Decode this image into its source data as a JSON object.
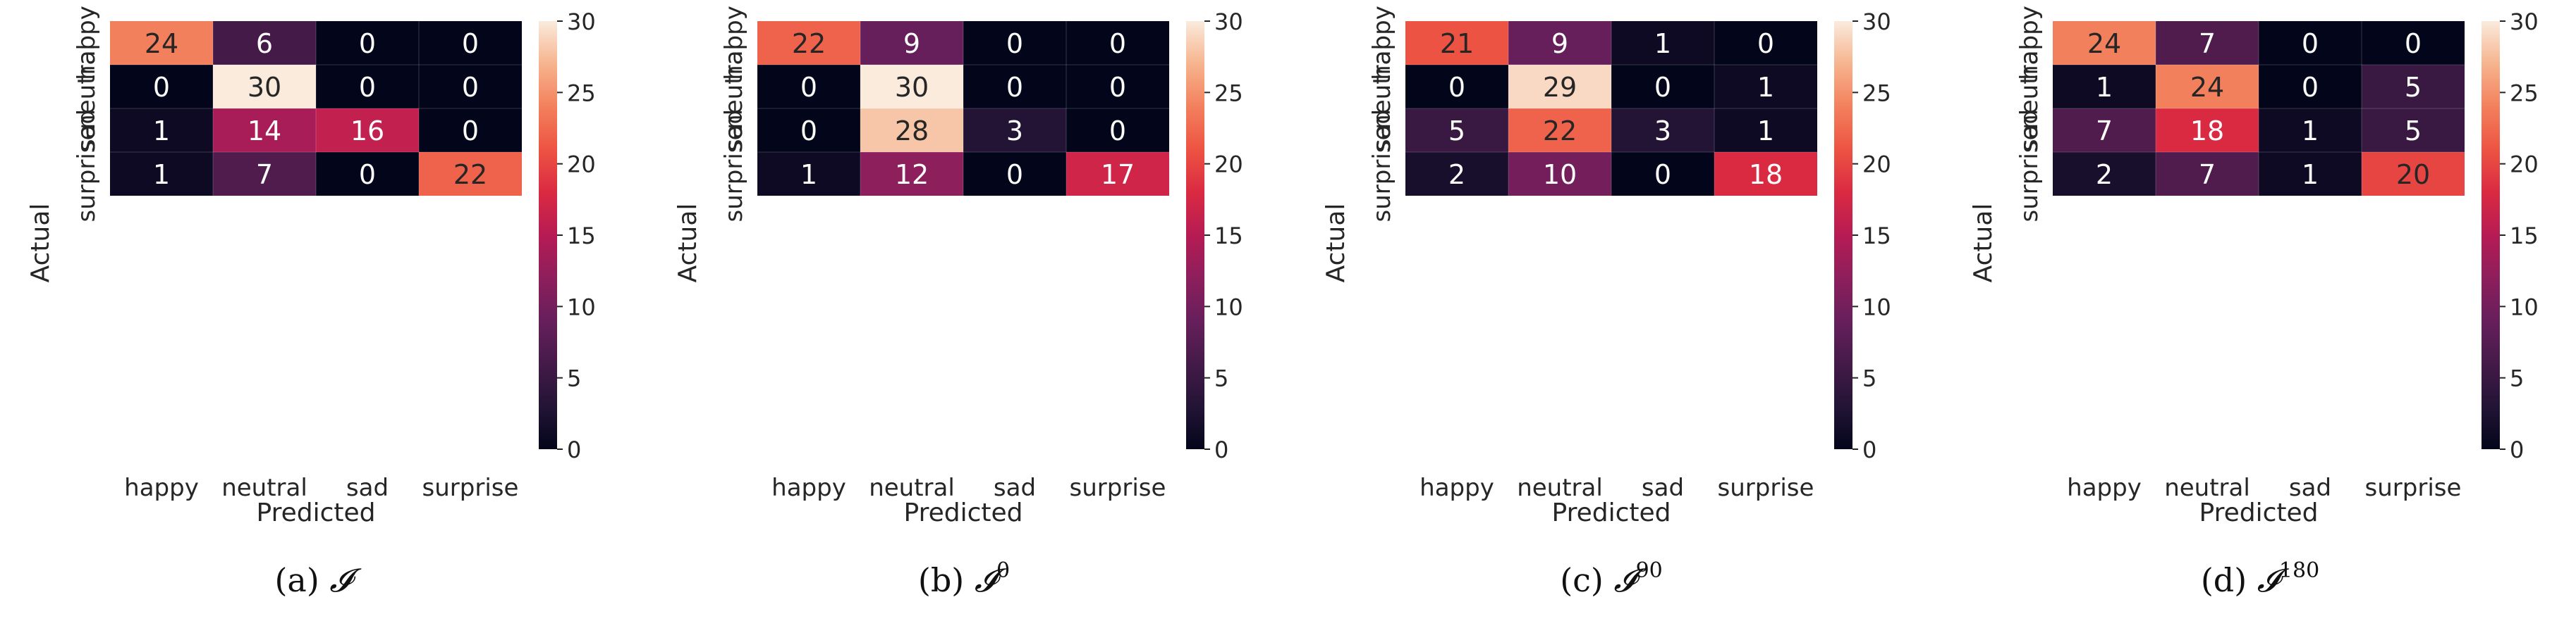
{
  "figure": {
    "panels": [
      {
        "letter": "(a)",
        "symbol": "𝓘",
        "superscript": ""
      },
      {
        "letter": "(b)",
        "symbol": "𝓘",
        "superscript": "0"
      },
      {
        "letter": "(c)",
        "symbol": "𝓘",
        "superscript": "90"
      },
      {
        "letter": "(d)",
        "symbol": "𝓘",
        "superscript": "180"
      }
    ]
  },
  "chart_data": [
    {
      "type": "heatmap",
      "title": "",
      "xlabel": "Predicted",
      "ylabel": "Actual",
      "x_categories": [
        "happy",
        "neutral",
        "sad",
        "surprise"
      ],
      "y_categories": [
        "happy",
        "neutral",
        "sad",
        "surprise"
      ],
      "values": [
        [
          24,
          6,
          0,
          0
        ],
        [
          0,
          30,
          0,
          0
        ],
        [
          1,
          14,
          16,
          0
        ],
        [
          1,
          7,
          0,
          22
        ]
      ],
      "colorbar": {
        "range": [
          0,
          30
        ],
        "ticks": [
          0,
          5,
          10,
          15,
          20,
          25,
          30
        ],
        "colormap": "rocket"
      }
    },
    {
      "type": "heatmap",
      "title": "",
      "xlabel": "Predicted",
      "ylabel": "Actual",
      "x_categories": [
        "happy",
        "neutral",
        "sad",
        "surprise"
      ],
      "y_categories": [
        "happy",
        "neutral",
        "sad",
        "surprise"
      ],
      "values": [
        [
          22,
          9,
          0,
          0
        ],
        [
          0,
          30,
          0,
          0
        ],
        [
          0,
          28,
          3,
          0
        ],
        [
          1,
          12,
          0,
          17
        ]
      ],
      "colorbar": {
        "range": [
          0,
          30
        ],
        "ticks": [
          0,
          5,
          10,
          15,
          20,
          25,
          30
        ],
        "colormap": "rocket"
      }
    },
    {
      "type": "heatmap",
      "title": "",
      "xlabel": "Predicted",
      "ylabel": "Actual",
      "x_categories": [
        "happy",
        "neutral",
        "sad",
        "surprise"
      ],
      "y_categories": [
        "happy",
        "neutral",
        "sad",
        "surprise"
      ],
      "values": [
        [
          21,
          9,
          1,
          0
        ],
        [
          0,
          29,
          0,
          1
        ],
        [
          5,
          22,
          3,
          1
        ],
        [
          2,
          10,
          0,
          18
        ]
      ],
      "colorbar": {
        "range": [
          0,
          30
        ],
        "ticks": [
          0,
          5,
          10,
          15,
          20,
          25,
          30
        ],
        "colormap": "rocket"
      }
    },
    {
      "type": "heatmap",
      "title": "",
      "xlabel": "Predicted",
      "ylabel": "Actual",
      "x_categories": [
        "happy",
        "neutral",
        "sad",
        "surprise"
      ],
      "y_categories": [
        "happy",
        "neutral",
        "sad",
        "surprise"
      ],
      "values": [
        [
          24,
          7,
          0,
          0
        ],
        [
          1,
          24,
          0,
          5
        ],
        [
          7,
          18,
          1,
          5
        ],
        [
          2,
          7,
          1,
          20
        ]
      ],
      "colorbar": {
        "range": [
          0,
          30
        ],
        "ticks": [
          0,
          5,
          10,
          15,
          20,
          25,
          30
        ],
        "colormap": "rocket"
      }
    }
  ]
}
